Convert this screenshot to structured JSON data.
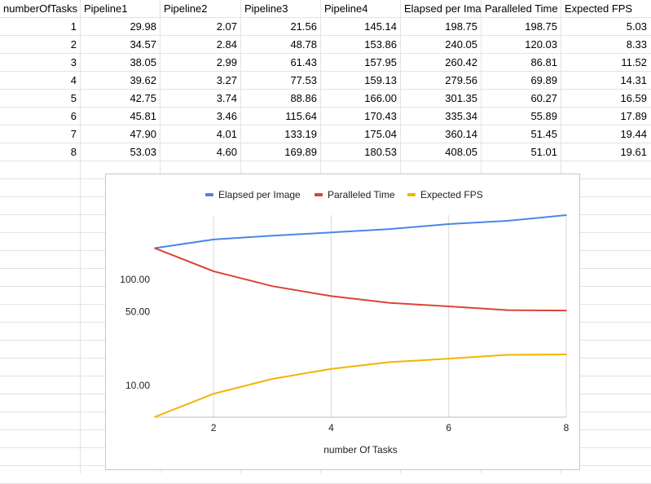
{
  "table": {
    "headers": [
      "numberOfTasks",
      "Pipeline1",
      "Pipeline2",
      "Pipeline3",
      "Pipeline4",
      "Elapsed per Ima",
      "Paralleled Time",
      "Expected FPS"
    ],
    "rows": [
      [
        "1",
        "29.98",
        "2.07",
        "21.56",
        "145.14",
        "198.75",
        "198.75",
        "5.03"
      ],
      [
        "2",
        "34.57",
        "2.84",
        "48.78",
        "153.86",
        "240.05",
        "120.03",
        "8.33"
      ],
      [
        "3",
        "38.05",
        "2.99",
        "61.43",
        "157.95",
        "260.42",
        "86.81",
        "11.52"
      ],
      [
        "4",
        "39.62",
        "3.27",
        "77.53",
        "159.13",
        "279.56",
        "69.89",
        "14.31"
      ],
      [
        "5",
        "42.75",
        "3.74",
        "88.86",
        "166.00",
        "301.35",
        "60.27",
        "16.59"
      ],
      [
        "6",
        "45.81",
        "3.46",
        "115.64",
        "170.43",
        "335.34",
        "55.89",
        "17.89"
      ],
      [
        "7",
        "47.90",
        "4.01",
        "133.19",
        "175.04",
        "360.14",
        "51.45",
        "19.44"
      ],
      [
        "8",
        "53.03",
        "4.60",
        "169.89",
        "180.53",
        "408.05",
        "51.01",
        "19.61"
      ]
    ]
  },
  "chart_data": {
    "type": "line",
    "x": [
      1,
      2,
      3,
      4,
      5,
      6,
      7,
      8
    ],
    "series": [
      {
        "name": "Elapsed per Image",
        "color": "#4a86e8",
        "values": [
          198.75,
          240.05,
          260.42,
          279.56,
          301.35,
          335.34,
          360.14,
          408.05
        ]
      },
      {
        "name": "Paralleled Time",
        "color": "#db4437",
        "values": [
          198.75,
          120.03,
          86.81,
          69.89,
          60.27,
          55.89,
          51.45,
          51.01
        ]
      },
      {
        "name": "Expected FPS",
        "color": "#f4b400",
        "values": [
          5.03,
          8.33,
          11.52,
          14.31,
          16.59,
          17.89,
          19.44,
          19.61
        ]
      }
    ],
    "xlabel": "number Of Tasks",
    "ylabel": "",
    "xticks": [
      2,
      4,
      6,
      8
    ],
    "yticks": [
      10,
      50,
      100
    ],
    "ytick_labels": [
      "10.00",
      "50.00",
      "100.00"
    ],
    "yscale": "log",
    "xlim": [
      1,
      8
    ],
    "ylim": [
      5,
      408
    ],
    "grid": "vertical",
    "legend": "top"
  }
}
